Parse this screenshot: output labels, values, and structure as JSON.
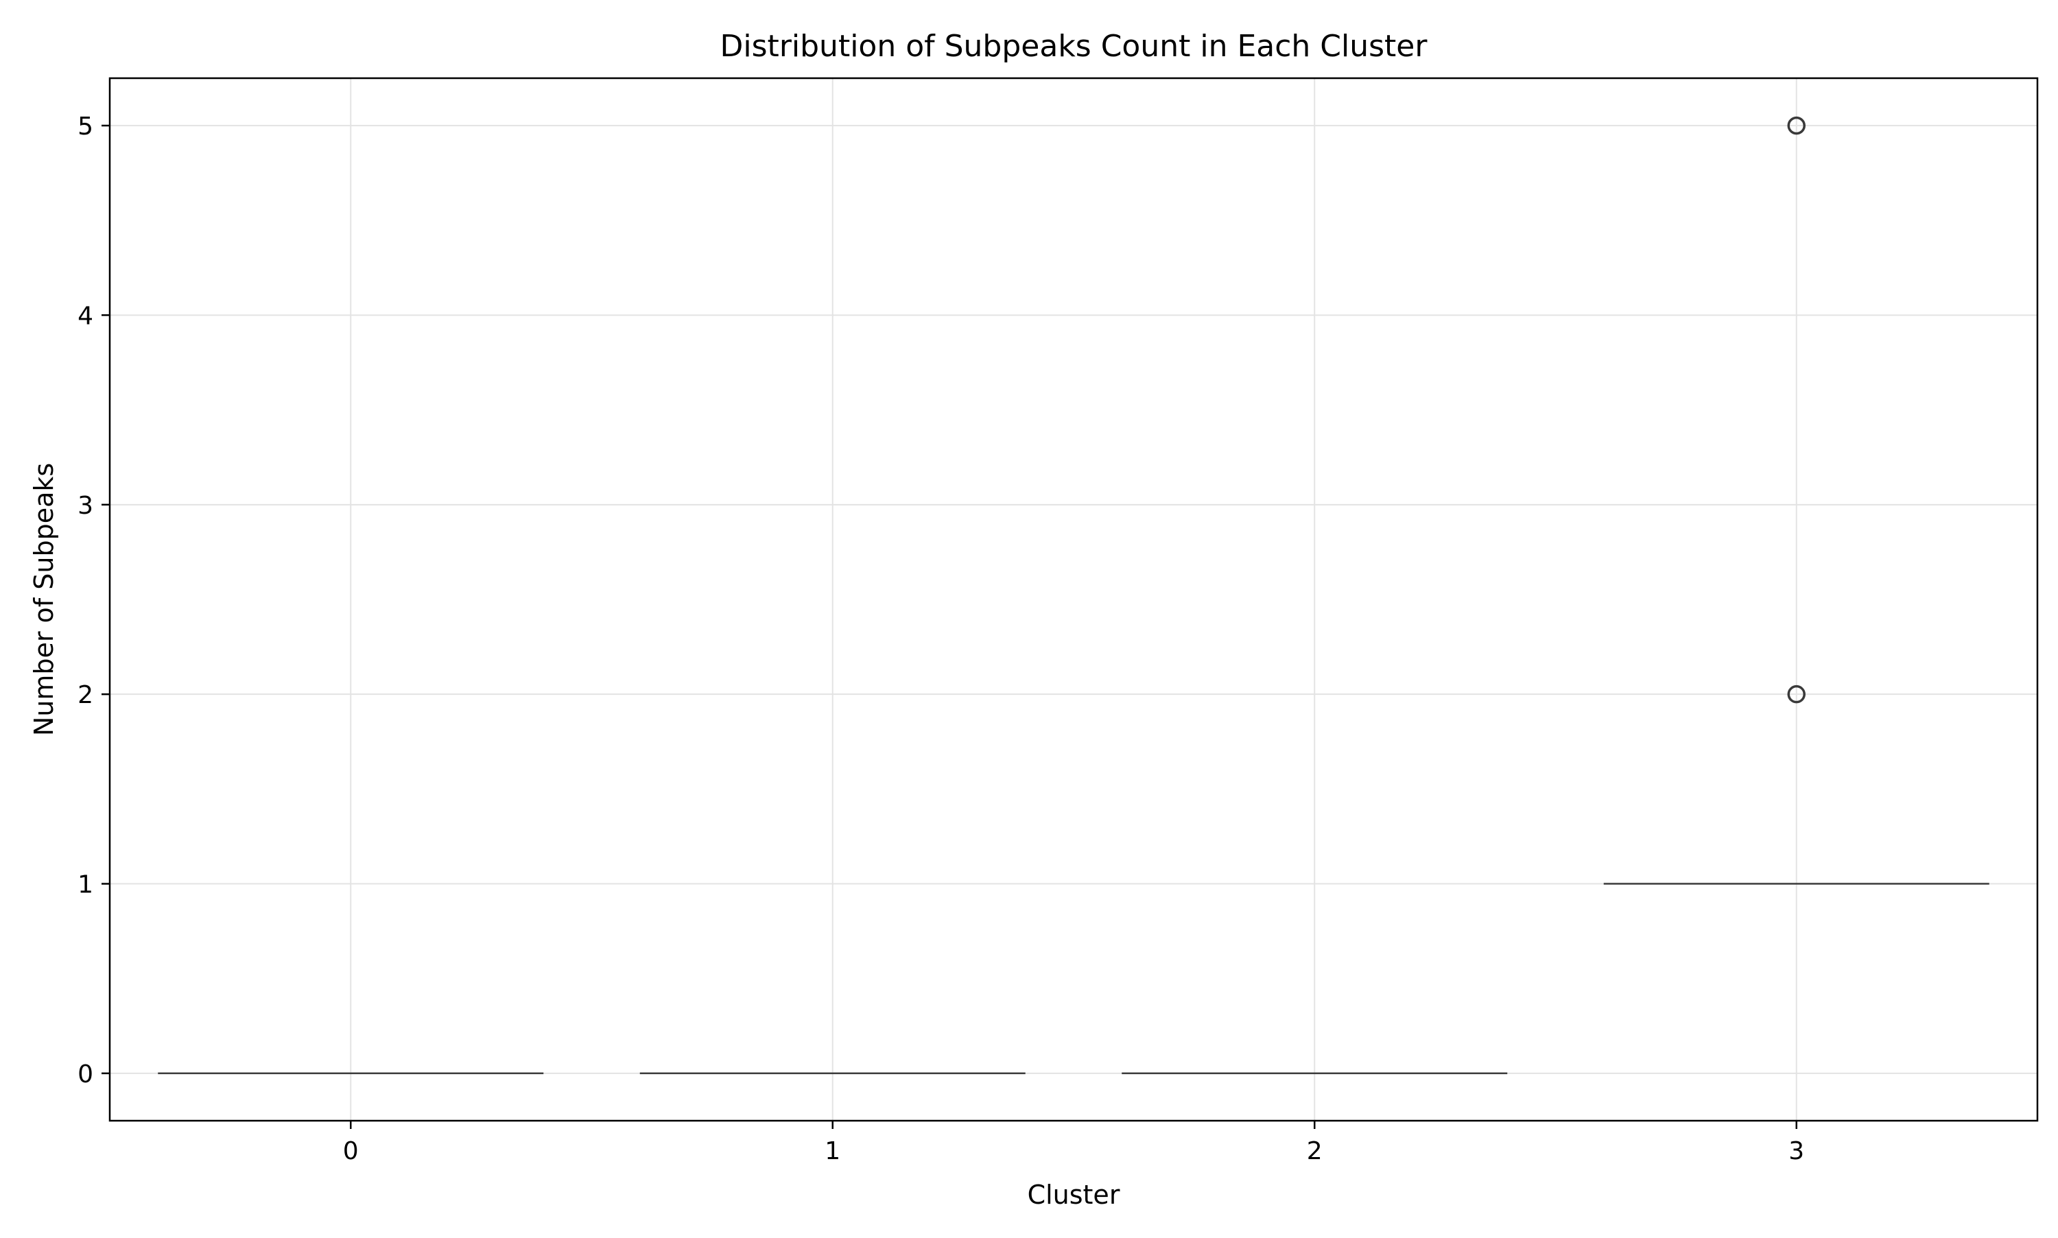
{
  "chart_data": {
    "type": "box",
    "title": "Distribution of Subpeaks Count in Each Cluster",
    "xlabel": "Cluster",
    "ylabel": "Number of Subpeaks",
    "categories": [
      "0",
      "1",
      "2",
      "3"
    ],
    "boxes": [
      {
        "category": "0",
        "q1": 0,
        "median": 0,
        "q3": 0,
        "whisker_low": 0,
        "whisker_high": 0,
        "outliers": []
      },
      {
        "category": "1",
        "q1": 0,
        "median": 0,
        "q3": 0,
        "whisker_low": 0,
        "whisker_high": 0,
        "outliers": []
      },
      {
        "category": "2",
        "q1": 0,
        "median": 0,
        "q3": 0,
        "whisker_low": 0,
        "whisker_high": 0,
        "outliers": []
      },
      {
        "category": "3",
        "q1": 1,
        "median": 1,
        "q3": 1,
        "whisker_low": 1,
        "whisker_high": 1,
        "outliers": [
          2,
          5
        ]
      }
    ],
    "yticks": [
      0,
      1,
      2,
      3,
      4,
      5
    ],
    "ylim": [
      -0.25,
      5.25
    ],
    "grid": true,
    "colors": {
      "box_line": "#3a3a3a",
      "grid": "#e3e3e3",
      "axes": "#000000"
    }
  }
}
